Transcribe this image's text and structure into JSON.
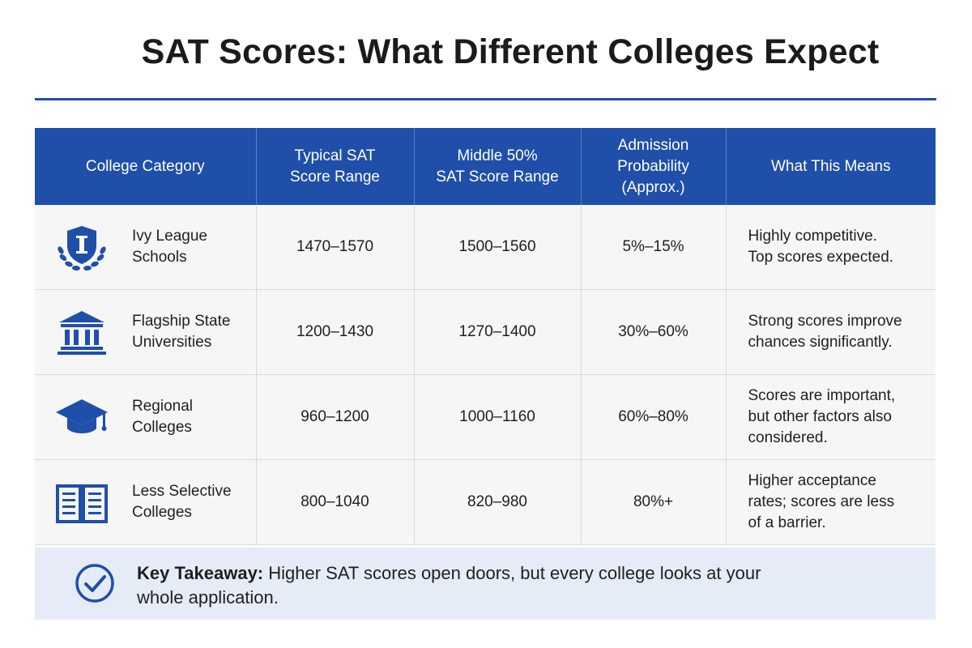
{
  "title": "SAT Scores: What Different Colleges Expect",
  "table": {
    "headers": [
      {
        "line1": "College Category",
        "line2": "",
        "line3": ""
      },
      {
        "line1": "Typical SAT",
        "line2": "Score Range",
        "line3": ""
      },
      {
        "line1": "Middle 50%",
        "line2": "SAT Score Range",
        "line3": ""
      },
      {
        "line1": "Admission",
        "line2": "Probability",
        "line3": "(Approx.)"
      },
      {
        "line1": "What This Means",
        "line2": "",
        "line3": ""
      }
    ],
    "rows": [
      {
        "icon": "shield-laurel-icon",
        "category_l1": "Ivy League",
        "category_l2": "Schools",
        "typical": "1470–1570",
        "middle": "1500–1560",
        "probability": "5%–15%",
        "means_l1": "Highly competitive.",
        "means_l2": "Top scores expected.",
        "means_l3": ""
      },
      {
        "icon": "government-building-icon",
        "category_l1": "Flagship State",
        "category_l2": "Universities",
        "typical": "1200–1430",
        "middle": "1270–1400",
        "probability": "30%–60%",
        "means_l1": "Strong scores improve",
        "means_l2": "chances significantly.",
        "means_l3": ""
      },
      {
        "icon": "graduation-cap-icon",
        "category_l1": "Regional",
        "category_l2": "Colleges",
        "typical": "960–1200",
        "middle": "1000–1160",
        "probability": "60%–80%",
        "means_l1": "Scores are important,",
        "means_l2": "but other factors also",
        "means_l3": "considered."
      },
      {
        "icon": "open-book-icon",
        "category_l1": "Less Selective",
        "category_l2": "Colleges",
        "typical": "800–1040",
        "middle": "820–980",
        "probability": "80%+",
        "means_l1": "Higher acceptance",
        "means_l2": "rates; scores are less",
        "means_l3": "of a barrier."
      }
    ]
  },
  "takeaway": {
    "icon": "check-circle-icon",
    "label": "Key Takeaway:",
    "text_l1": " Higher SAT scores open doors, but every college looks at your",
    "text_l2": "whole application."
  },
  "colors": {
    "accent": "#1f4fa8",
    "row_bg": "#f6f6f6",
    "footer_bg": "#e5ecf7"
  }
}
